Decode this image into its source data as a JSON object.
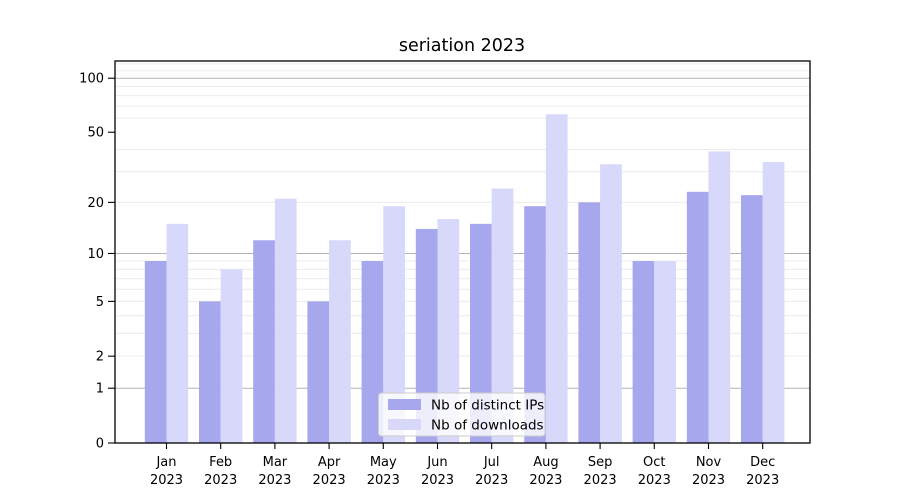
{
  "figure": {
    "background": "#ffffff"
  },
  "chart_data": {
    "type": "bar",
    "title": "seriation 2023",
    "categories": [
      "Jan",
      "Feb",
      "Mar",
      "Apr",
      "May",
      "Jun",
      "Jul",
      "Aug",
      "Sep",
      "Oct",
      "Nov",
      "Dec"
    ],
    "category_year": "2023",
    "series": [
      {
        "name": "Nb of distinct IPs",
        "color": "#a7a7ee",
        "values": [
          9,
          5,
          12,
          5,
          9,
          14,
          15,
          19,
          20,
          9,
          23,
          22
        ]
      },
      {
        "name": "Nb of downloads",
        "color": "#d8d8fa",
        "values": [
          15,
          8,
          21,
          12,
          19,
          16,
          24,
          63,
          33,
          9,
          39,
          34
        ]
      }
    ],
    "xlabel": "",
    "ylabel": "",
    "yscale": "log1p",
    "yticks": [
      0,
      1,
      2,
      5,
      10,
      20,
      50,
      100
    ],
    "ylim": [
      0,
      123
    ],
    "grid": {
      "on": true,
      "major_values": [
        1,
        10,
        100
      ],
      "minor_values": [
        2,
        3,
        4,
        5,
        6,
        7,
        8,
        9,
        20,
        30,
        40,
        60,
        70,
        80,
        90,
        110,
        120
      ],
      "major_color": "#b3b3b3",
      "minor_color": "#ececec"
    },
    "legend": {
      "position": "lower center",
      "entries": [
        "Nb of distinct IPs",
        "Nb of downloads"
      ]
    }
  }
}
